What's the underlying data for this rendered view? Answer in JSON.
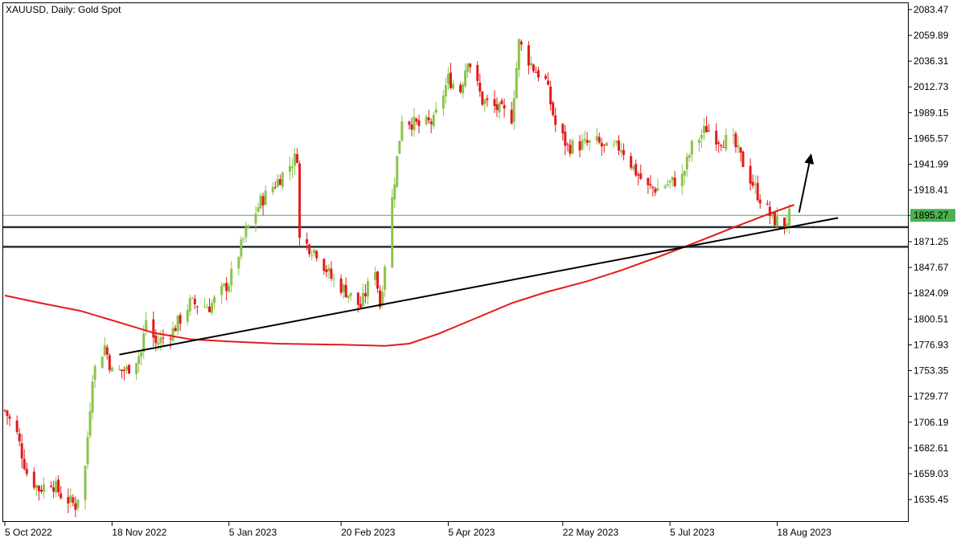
{
  "chart_data": {
    "type": "candlestick",
    "symbol": "XAUUSD",
    "timeframe": "Daily:",
    "description": "Gold Spot",
    "current_price_label": "1895.27",
    "current_price": 1895.27,
    "y_axis": {
      "range": [
        1615.0,
        2090.0
      ],
      "ticks": [
        "2083.47",
        "2059.89",
        "2036.31",
        "2012.73",
        "1989.15",
        "1965.57",
        "1941.99",
        "1918.41",
        "1895.27",
        "1871.25",
        "1847.67",
        "1824.09",
        "1800.51",
        "1776.93",
        "1753.35",
        "1729.77",
        "1706.19",
        "1682.61",
        "1659.03",
        "1635.45"
      ]
    },
    "x_axis": {
      "start_date": "2022-10-05",
      "ticks": [
        {
          "label": "5 Oct 2022",
          "date": "2022-10-05"
        },
        {
          "label": "18 Nov 2022",
          "date": "2022-11-18"
        },
        {
          "label": "5 Jan 2023",
          "date": "2023-01-05"
        },
        {
          "label": "20 Feb 2023",
          "date": "2023-02-20"
        },
        {
          "label": "5 Apr 2023",
          "date": "2023-04-05"
        },
        {
          "label": "22 May 2023",
          "date": "2023-05-22"
        },
        {
          "label": "5 Jul 2023",
          "date": "2023-07-05"
        },
        {
          "label": "18 Aug 2023",
          "date": "2023-08-18"
        }
      ],
      "end_date": "2023-10-10"
    },
    "close_path": [
      [
        "2022-10-05",
        1717
      ],
      [
        "2022-10-10",
        1695
      ],
      [
        "2022-10-14",
        1660
      ],
      [
        "2022-10-19",
        1645
      ],
      [
        "2022-10-24",
        1652
      ],
      [
        "2022-10-28",
        1640
      ],
      [
        "2022-11-03",
        1630
      ],
      [
        "2022-11-07",
        1665
      ],
      [
        "2022-11-10",
        1750
      ],
      [
        "2022-11-15",
        1776
      ],
      [
        "2022-11-18",
        1752
      ],
      [
        "2022-11-24",
        1754
      ],
      [
        "2022-11-30",
        1770
      ],
      [
        "2022-12-02",
        1800
      ],
      [
        "2022-12-06",
        1778
      ],
      [
        "2022-12-13",
        1790
      ],
      [
        "2022-12-20",
        1815
      ],
      [
        "2022-12-28",
        1812
      ],
      [
        "2023-01-05",
        1834
      ],
      [
        "2023-01-12",
        1880
      ],
      [
        "2023-01-18",
        1908
      ],
      [
        "2023-01-26",
        1930
      ],
      [
        "2023-02-02",
        1950
      ],
      [
        "2023-02-03",
        1873
      ],
      [
        "2023-02-10",
        1862
      ],
      [
        "2023-02-16",
        1838
      ],
      [
        "2023-02-22",
        1826
      ],
      [
        "2023-02-28",
        1812
      ],
      [
        "2023-03-06",
        1848
      ],
      [
        "2023-03-08",
        1813
      ],
      [
        "2023-03-13",
        1910
      ],
      [
        "2023-03-17",
        1985
      ],
      [
        "2023-03-24",
        1977
      ],
      [
        "2023-03-30",
        1981
      ],
      [
        "2023-04-05",
        2020
      ],
      [
        "2023-04-10",
        2010
      ],
      [
        "2023-04-13",
        2040
      ],
      [
        "2023-04-19",
        2000
      ],
      [
        "2023-04-25",
        1993
      ],
      [
        "2023-05-01",
        1985
      ],
      [
        "2023-05-04",
        2053
      ],
      [
        "2023-05-10",
        2030
      ],
      [
        "2023-05-15",
        2018
      ],
      [
        "2023-05-19",
        1978
      ],
      [
        "2023-05-24",
        1958
      ],
      [
        "2023-05-30",
        1960
      ],
      [
        "2023-06-05",
        1962
      ],
      [
        "2023-06-09",
        1955
      ],
      [
        "2023-06-15",
        1958
      ],
      [
        "2023-06-21",
        1935
      ],
      [
        "2023-06-26",
        1920
      ],
      [
        "2023-06-30",
        1920
      ],
      [
        "2023-07-05",
        1925
      ],
      [
        "2023-07-10",
        1930
      ],
      [
        "2023-07-14",
        1958
      ],
      [
        "2023-07-20",
        1975
      ],
      [
        "2023-07-25",
        1965
      ],
      [
        "2023-07-31",
        1962
      ],
      [
        "2023-08-04",
        1943
      ],
      [
        "2023-08-10",
        1915
      ],
      [
        "2023-08-16",
        1892
      ],
      [
        "2023-08-21",
        1887
      ],
      [
        "2023-08-23",
        1895
      ]
    ],
    "moving_average": {
      "color": "#e41a1c",
      "points": [
        [
          "2022-10-05",
          1822
        ],
        [
          "2022-10-20",
          1815
        ],
        [
          "2022-11-05",
          1808
        ],
        [
          "2022-11-20",
          1798
        ],
        [
          "2022-12-05",
          1788
        ],
        [
          "2022-12-20",
          1782
        ],
        [
          "2023-01-05",
          1780
        ],
        [
          "2023-01-25",
          1778
        ],
        [
          "2023-02-20",
          1777
        ],
        [
          "2023-03-10",
          1776
        ],
        [
          "2023-03-20",
          1778
        ],
        [
          "2023-04-01",
          1787
        ],
        [
          "2023-04-15",
          1800
        ],
        [
          "2023-05-01",
          1815
        ],
        [
          "2023-05-15",
          1825
        ],
        [
          "2023-06-01",
          1835
        ],
        [
          "2023-06-15",
          1845
        ],
        [
          "2023-07-01",
          1858
        ],
        [
          "2023-07-15",
          1870
        ],
        [
          "2023-08-01",
          1885
        ],
        [
          "2023-08-15",
          1897
        ],
        [
          "2023-08-25",
          1905
        ]
      ]
    },
    "trend_line": {
      "color": "#000000",
      "from": [
        "2022-11-21",
        1768
      ],
      "to": [
        "2023-09-12",
        1893
      ]
    },
    "horizontal_lines": [
      {
        "price": 1895.27,
        "color": "#4caf50"
      },
      {
        "price": 1884.5,
        "color": "#263238"
      },
      {
        "price": 1866.5,
        "color": "#263238"
      }
    ],
    "arrow": {
      "color": "#000000",
      "from": [
        "2023-08-27",
        1898
      ],
      "to": [
        "2023-09-01",
        1952
      ]
    },
    "colors": {
      "up": "#8bc34a",
      "down": "#e41a1c",
      "price_label_bg": "#4caf50"
    },
    "grid": false
  }
}
